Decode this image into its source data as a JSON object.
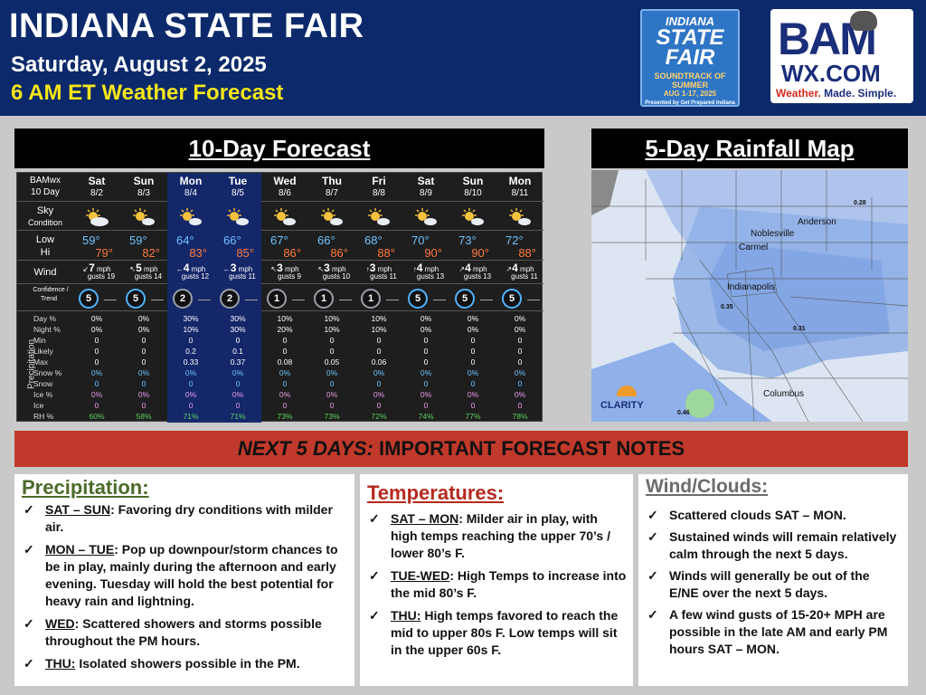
{
  "header": {
    "title": "INDIANA STATE FAIR",
    "date": "Saturday, August 2, 2025",
    "subtitle": "6 AM ET Weather Forecast",
    "fair_logo": {
      "line1": "INDIANA",
      "line2": "STATE",
      "line3": "FAIR",
      "line4": "SOUNDTRACK OF SUMMER",
      "line5": "AUG 1-17, 2025",
      "line6": "Presented by Get Prepared Indiana"
    },
    "bam_logo": {
      "bam": "BAM",
      "wx": "WX.COM",
      "tag_a": "Weather. ",
      "tag_b": "Made. Simple."
    }
  },
  "forecast": {
    "heading": "10-Day Forecast",
    "corner_1": "BAMwx",
    "corner_2": "10 Day",
    "row_labels": {
      "sky": "Sky",
      "sky_sub": "Condition",
      "low": "Low",
      "hi": "Hi",
      "wind": "Wind",
      "confidence": "Confidence /",
      "trend": "Trend",
      "precipitation": "Precipitation"
    },
    "precip_labels": [
      "Day %",
      "Night %",
      "Min",
      "Likely",
      "Max",
      "Snow %",
      "Snow",
      "Ice %",
      "Ice",
      "RH %"
    ],
    "wind_unit": "mph",
    "days": [
      {
        "day": "Sat",
        "date": "8/2",
        "sky": "partly-cloudy-icon",
        "low": "59°",
        "hi": "79°",
        "wind_dir": "↙",
        "wind": "7",
        "gusts": "gusts 19",
        "conf": "5",
        "trend": "—",
        "day_pct": "0%",
        "night_pct": "0%",
        "min": "0",
        "likely": "0",
        "max": "0",
        "snow_pct": "0%",
        "snow": "0",
        "ice_pct": "0%",
        "ice": "0",
        "rh": "60%"
      },
      {
        "day": "Sun",
        "date": "8/3",
        "sky": "sunny-icon",
        "low": "59°",
        "hi": "82°",
        "wind_dir": "↖",
        "wind": "5",
        "gusts": "gusts 14",
        "conf": "5",
        "trend": "—",
        "day_pct": "0%",
        "night_pct": "0%",
        "min": "0",
        "likely": "0",
        "max": "0",
        "snow_pct": "0%",
        "snow": "0",
        "ice_pct": "0%",
        "ice": "0",
        "rh": "58%"
      },
      {
        "day": "Mon",
        "date": "8/4",
        "sky": "sunny-icon",
        "low": "64°",
        "hi": "83°",
        "wind_dir": "←",
        "wind": "4",
        "gusts": "gusts 12",
        "conf": "2",
        "trend": "—",
        "day_pct": "30%",
        "night_pct": "10%",
        "min": "0",
        "likely": "0.2",
        "max": "0.33",
        "snow_pct": "0%",
        "snow": "0",
        "ice_pct": "0%",
        "ice": "0",
        "rh": "71%"
      },
      {
        "day": "Tue",
        "date": "8/5",
        "sky": "sunny-icon",
        "low": "66°",
        "hi": "85°",
        "wind_dir": "←",
        "wind": "3",
        "gusts": "gusts 11",
        "conf": "2",
        "trend": "—",
        "day_pct": "30%",
        "night_pct": "30%",
        "min": "0",
        "likely": "0.1",
        "max": "0.37",
        "snow_pct": "0%",
        "snow": "0",
        "ice_pct": "0%",
        "ice": "0",
        "rh": "71%"
      },
      {
        "day": "Wed",
        "date": "8/6",
        "sky": "sunny-icon",
        "low": "67°",
        "hi": "86°",
        "wind_dir": "↖",
        "wind": "3",
        "gusts": "gusts 9",
        "conf": "1",
        "trend": "—",
        "day_pct": "10%",
        "night_pct": "20%",
        "min": "0",
        "likely": "0",
        "max": "0.08",
        "snow_pct": "0%",
        "snow": "0",
        "ice_pct": "0%",
        "ice": "0",
        "rh": "73%"
      },
      {
        "day": "Thu",
        "date": "8/7",
        "sky": "sunny-icon",
        "low": "66°",
        "hi": "86°",
        "wind_dir": "↖",
        "wind": "3",
        "gusts": "gusts 10",
        "conf": "1",
        "trend": "—",
        "day_pct": "10%",
        "night_pct": "10%",
        "min": "0",
        "likely": "0",
        "max": "0.05",
        "snow_pct": "0%",
        "snow": "0",
        "ice_pct": "0%",
        "ice": "0",
        "rh": "73%"
      },
      {
        "day": "Fri",
        "date": "8/8",
        "sky": "sunny-icon",
        "low": "68°",
        "hi": "88°",
        "wind_dir": "↑",
        "wind": "3",
        "gusts": "gusts 11",
        "conf": "1",
        "trend": "—",
        "day_pct": "10%",
        "night_pct": "10%",
        "min": "0",
        "likely": "0",
        "max": "0.06",
        "snow_pct": "0%",
        "snow": "0",
        "ice_pct": "0%",
        "ice": "0",
        "rh": "72%"
      },
      {
        "day": "Sat",
        "date": "8/9",
        "sky": "sunny-icon",
        "low": "70°",
        "hi": "90°",
        "wind_dir": "↑",
        "wind": "4",
        "gusts": "gusts 13",
        "conf": "5",
        "trend": "—",
        "day_pct": "0%",
        "night_pct": "0%",
        "min": "0",
        "likely": "0",
        "max": "0",
        "snow_pct": "0%",
        "snow": "0",
        "ice_pct": "0%",
        "ice": "0",
        "rh": "74%"
      },
      {
        "day": "Sun",
        "date": "8/10",
        "sky": "sunny-icon",
        "low": "73°",
        "hi": "90°",
        "wind_dir": "↗",
        "wind": "4",
        "gusts": "gusts 13",
        "conf": "5",
        "trend": "—",
        "day_pct": "0%",
        "night_pct": "0%",
        "min": "0",
        "likely": "0",
        "max": "0",
        "snow_pct": "0%",
        "snow": "0",
        "ice_pct": "0%",
        "ice": "0",
        "rh": "77%"
      },
      {
        "day": "Mon",
        "date": "8/11",
        "sky": "sunny-icon",
        "low": "72°",
        "hi": "88°",
        "wind_dir": "↗",
        "wind": "4",
        "gusts": "gusts 11",
        "conf": "5",
        "trend": "—",
        "day_pct": "0%",
        "night_pct": "0%",
        "min": "0",
        "likely": "0",
        "max": "0",
        "snow_pct": "0%",
        "snow": "0",
        "ice_pct": "0%",
        "ice": "0",
        "rh": "78%"
      }
    ]
  },
  "map": {
    "heading": "5-Day Rainfall Map",
    "cities": [
      "Anderson",
      "Noblesville",
      "Carmel",
      "Indianapolis",
      "Columbus"
    ],
    "values": [
      "0.28",
      "0.35",
      "0.31",
      "0.46"
    ],
    "brand": "CLARITY"
  },
  "notes": {
    "banner_italic": "NEXT 5 DAYS:",
    "banner_rest": " IMPORTANT FORECAST NOTES",
    "precip": {
      "title": "Precipitation:",
      "items": [
        {
          "key": "SAT – SUN",
          "text": ": Favoring dry conditions with milder air."
        },
        {
          "key": "MON – TUE",
          "text": ": Pop up downpour/storm chances to be in play, mainly during the afternoon and early evening. Tuesday will hold the best potential for heavy rain and lightning."
        },
        {
          "key": "WED",
          "text": ": Scattered showers and storms possible throughout the PM hours."
        },
        {
          "key": "THU:",
          "text": " Isolated showers possible in the PM."
        }
      ]
    },
    "temp": {
      "title": "Temperatures:",
      "items": [
        {
          "key": "SAT – MON",
          "text": ": Milder air in play, with high temps reaching the upper 70’s / lower 80’s F."
        },
        {
          "key": "TUE-WED",
          "text": ": High Temps to increase into the mid 80’s F."
        },
        {
          "key": "THU:",
          "text": " High temps favored to reach the mid to upper 80s F. Low temps will sit in the upper 60s F."
        }
      ]
    },
    "wind": {
      "title": "Wind/Clouds:",
      "items": [
        {
          "key": "",
          "text": "Scattered clouds SAT – MON."
        },
        {
          "key": "",
          "text": "Sustained winds will remain relatively calm through the next 5 days."
        },
        {
          "key": "",
          "text": "Winds will generally be out of the E/NE over the next 5 days."
        },
        {
          "key": "",
          "text": "A few wind gusts of 15-20+ MPH are possible in the late AM and early PM hours SAT – MON."
        }
      ]
    },
    "check": "✓"
  },
  "colors": {
    "header_bg": "#0c2a6b",
    "subtitle": "#f5e51a",
    "banner": "#c0392b",
    "hi_temp": "#ff7a3c",
    "low_temp": "#6ec3ff"
  }
}
